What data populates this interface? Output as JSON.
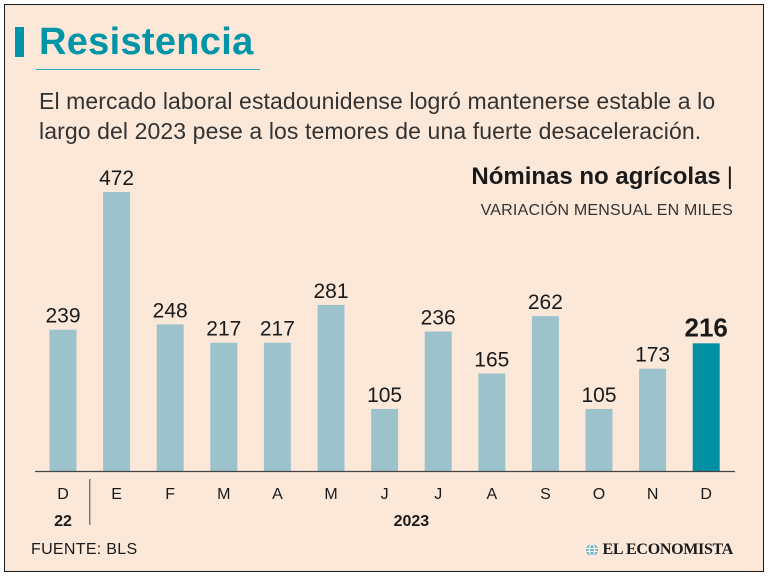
{
  "header": {
    "title": "Resistencia",
    "subtitle": "El mercado laboral estadounidense logró mantenerse estable a lo largo del 2023 pese a los temores de una fuerte desaceleración."
  },
  "colors": {
    "accent": "#0094a8",
    "bar": "#9cc2cc",
    "highlight_bar": "#008fa3",
    "background": "#fbe8d9"
  },
  "chart_data": {
    "type": "bar",
    "title": "Nóminas no agrícolas",
    "title_separator": "|",
    "subtitle": "VARIACIÓN MENSUAL EN MILES",
    "categories": [
      "D",
      "E",
      "F",
      "M",
      "A",
      "M",
      "J",
      "J",
      "A",
      "S",
      "O",
      "N",
      "D"
    ],
    "values": [
      239,
      472,
      248,
      217,
      217,
      281,
      105,
      236,
      165,
      262,
      105,
      173,
      216
    ],
    "value_labels": [
      "239",
      "472",
      "248",
      "217",
      "217",
      "281",
      "105",
      "236",
      "165",
      "262",
      "105",
      "173",
      "216"
    ],
    "highlight_index": 12,
    "year_groups": [
      {
        "label": "22",
        "start": 0,
        "end": 0
      },
      {
        "label": "2023",
        "start": 1,
        "end": 12
      }
    ],
    "ylim": [
      0,
      472
    ],
    "xlabel": "",
    "ylabel": ""
  },
  "footer": {
    "source": "FUENTE:  BLS",
    "logo_text": "EL ECONOMISTA",
    "logo_icon": "globe-icon"
  }
}
